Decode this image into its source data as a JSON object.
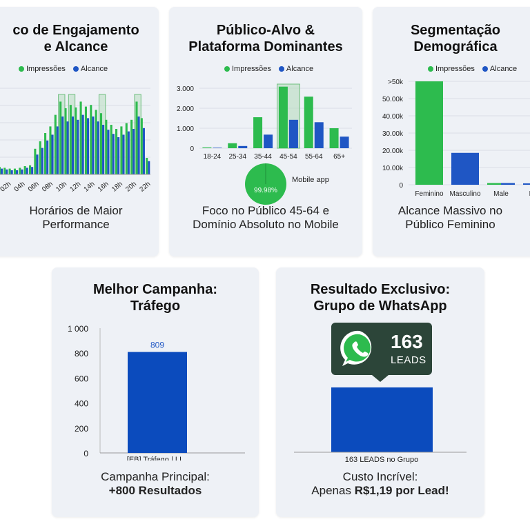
{
  "colors": {
    "impressions": "#2dbb4e",
    "reach": "#1f56c4",
    "highlight": "#b8dcbf",
    "bar": "#0b4bbd",
    "card": "#eef1f6",
    "whatsapp_bubble": "#2c4539"
  },
  "cards": [
    {
      "title_line1": "co de Engajamento",
      "title_line2": "e Alcance",
      "legend": [
        "Impressões",
        "Alcance"
      ],
      "caption_line1": "Horários de Maior",
      "caption_line2": "Performance"
    },
    {
      "title_line1": "Público-Alvo &",
      "title_line2": "Plataforma Dominantes",
      "legend": [
        "Impressões",
        "Alcance"
      ],
      "pie_value_label": "99.98%",
      "pie_legend_label": "Mobile app",
      "caption_line1": "Foco no Público 45-64 e",
      "caption_line2": "Domínio Absoluto no Mobile"
    },
    {
      "title_line1": "Segmentação",
      "title_line2": "Demográfica",
      "legend": [
        "Impressões",
        "Alcance"
      ],
      "caption_line1": "Alcance Massivo no",
      "caption_line2": "Público Feminino"
    },
    {
      "title_line1": "Melhor Campanha:",
      "title_line2": "Tráfego",
      "caption_line1": "Campanha Principal:",
      "caption_line2": "+800 Resultados"
    },
    {
      "title_line1": "Resultado Exclusivo:",
      "title_line2": "Grupo de WhatsApp",
      "badge_number": "163",
      "badge_unit": "LEADS",
      "caption_line1": "Custo Incrível:",
      "caption_prefix": "Apenas ",
      "caption_highlight": "R$1,19 por Lead!"
    }
  ],
  "chart_data": [
    {
      "type": "bar",
      "title": "co de Engajamento e Alcance",
      "x_tick_labels": [
        "02h",
        "04h",
        "06h",
        "08h",
        "10h",
        "12h",
        "14h",
        "16h",
        "18h",
        "20h",
        "22h"
      ],
      "series": [
        {
          "name": "Impressões",
          "values": [
            0.1,
            0.09,
            0.08,
            0.07,
            0.07,
            0.08,
            0.1,
            0.11,
            0.31,
            0.4,
            0.5,
            0.58,
            0.72,
            0.88,
            0.8,
            0.84,
            0.81,
            0.88,
            0.82,
            0.84,
            0.78,
            0.74,
            0.66,
            0.6,
            0.55,
            0.58,
            0.62,
            0.66,
            0.88,
            0.68,
            0.2
          ]
        },
        {
          "name": "Alcance",
          "values": [
            0.08,
            0.07,
            0.06,
            0.05,
            0.05,
            0.06,
            0.08,
            0.09,
            0.24,
            0.32,
            0.41,
            0.48,
            0.58,
            0.7,
            0.64,
            0.7,
            0.66,
            0.72,
            0.68,
            0.7,
            0.64,
            0.6,
            0.54,
            0.49,
            0.45,
            0.48,
            0.52,
            0.55,
            0.7,
            0.56,
            0.16
          ]
        }
      ],
      "highlighted_columns": [
        13,
        15,
        21,
        28
      ],
      "grid": true
    },
    {
      "type": "bar",
      "title": "Público-Alvo & Plataforma Dominantes",
      "categories": [
        "18-24",
        "25-34",
        "35-44",
        "45-54",
        "55-64",
        "65+"
      ],
      "series": [
        {
          "name": "Impressões",
          "values": [
            40,
            250,
            1550,
            3080,
            2580,
            1000
          ]
        },
        {
          "name": "Alcance",
          "values": [
            25,
            110,
            680,
            1420,
            1300,
            580
          ]
        }
      ],
      "y_ticks": [
        0,
        1000,
        2000,
        3000
      ],
      "y_tick_labels": [
        "0",
        "1.000",
        "2.000",
        "3.000"
      ],
      "ylim": [
        0,
        3000
      ],
      "highlighted_category": "45-54",
      "grid": true
    },
    {
      "type": "pie",
      "labels": [
        "Mobile app"
      ],
      "values": [
        99.98
      ],
      "value_label": "99.98%"
    },
    {
      "type": "bar",
      "title": "Segmentação Demográfica",
      "categories": [
        "Feminino",
        "Masculino",
        "Male",
        "Desc"
      ],
      "series": [
        {
          "name": "Impressões",
          "values": [
            60000,
            0,
            1000,
            0
          ]
        },
        {
          "name": "Alcance",
          "values": [
            0,
            18500,
            1000,
            300
          ]
        }
      ],
      "y_ticks": [
        0,
        10000,
        20000,
        30000,
        40000,
        50000,
        60000
      ],
      "y_tick_labels": [
        "0",
        "10.00k",
        "20.00k",
        "30.00k",
        "40.00k",
        "50.00k",
        ">50k"
      ],
      "ylim": [
        0,
        60000
      ],
      "grid": true
    },
    {
      "type": "bar",
      "title": "Melhor Campanha: Tráfego",
      "categories": [
        "[EB] Tráfego | LI..."
      ],
      "values": [
        809
      ],
      "data_labels": [
        "809"
      ],
      "y_ticks": [
        0,
        200,
        400,
        600,
        800,
        1000
      ],
      "y_tick_labels": [
        "0",
        "200",
        "400",
        "600",
        "800",
        "1 000"
      ],
      "ylim": [
        0,
        1000
      ],
      "grid": false
    },
    {
      "type": "bar",
      "title": "Resultado Exclusivo: Grupo de WhatsApp",
      "categories": [
        "163 LEADS no Grupo"
      ],
      "values": [
        163
      ],
      "grid": false
    }
  ]
}
